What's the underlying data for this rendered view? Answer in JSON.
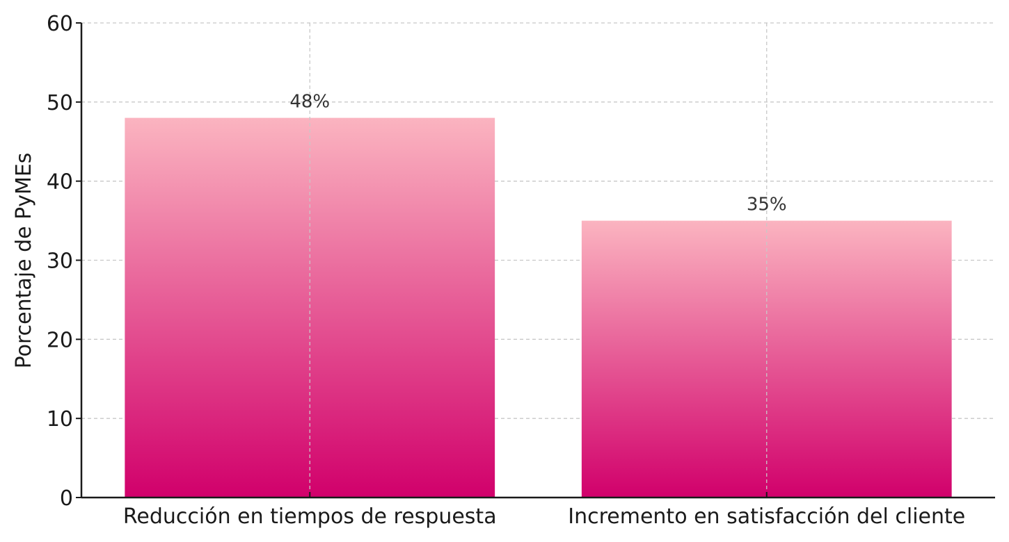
{
  "chart_data": {
    "type": "bar",
    "categories": [
      "Reducción en tiempos de respuesta",
      "Incremento en satisfacción del cliente"
    ],
    "values": [
      48,
      35
    ],
    "data_labels": [
      "48%",
      "35%"
    ],
    "title": "",
    "xlabel": "",
    "ylabel": "Porcentaje de PyMEs",
    "ylim": [
      0,
      60
    ],
    "yticks": [
      0,
      10,
      20,
      30,
      40,
      50,
      60
    ],
    "grid": true,
    "legend": "none",
    "colors": {
      "bar_top": "#fbb4c0",
      "bar_bottom": "#d1006b",
      "grid": "#c8c8c8",
      "axis": "#1a1a1a"
    }
  }
}
